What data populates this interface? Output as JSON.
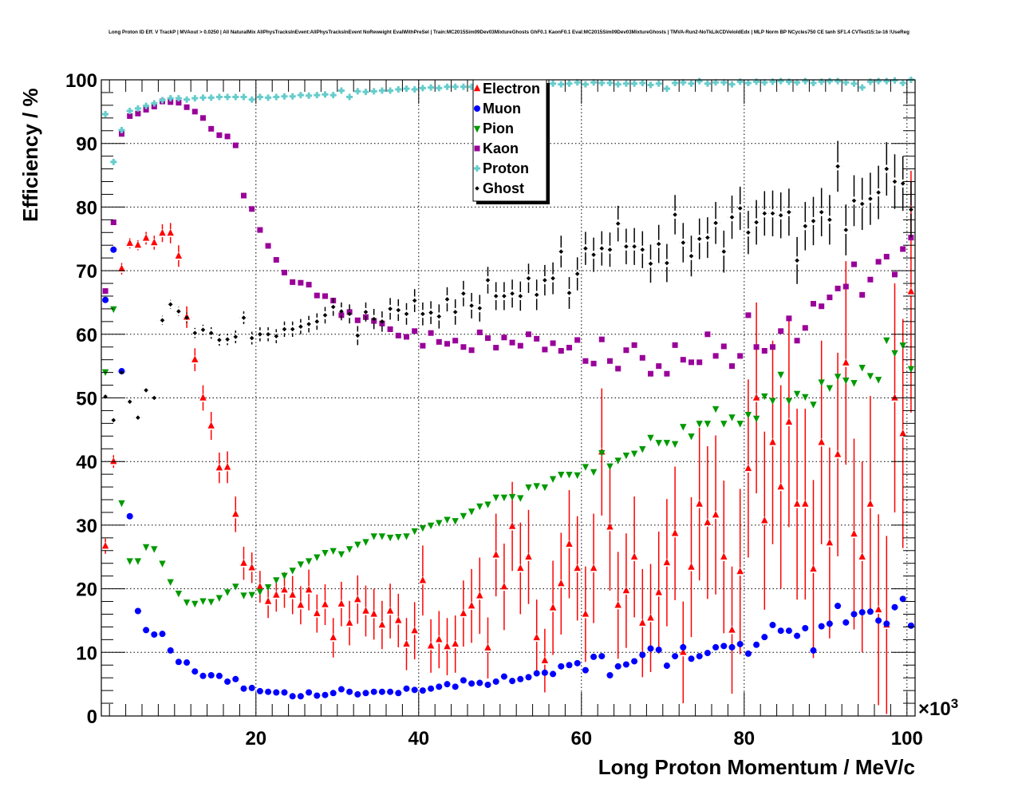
{
  "chart_data": {
    "type": "scatter",
    "title": "Long Proton ID Eff. V TrackP | MVAout > 0.0250 | All NaturalMix AllPhysTracksInEvent:AllPhysTracksInEvent NoReweight EvalWithPreSel | Train:MC2015Sim09Dev03MixtureGhosts GhF0.1 KaonF0.1 Eval:MC2015Sim09Dev03MixtureGhosts | TMVA-Run2-NoTkLikCDVeloIdEdx | MLP Norm BP NCycles750 CE tanh SF1.4 CVTest15:1e-16 !UseReg",
    "xlabel": "Long Proton Momentum / MeV/c",
    "ylabel": "Efficiency / %",
    "x_multiplier": "×10",
    "x_multiplier_exp": "3",
    "xlim": [
      1,
      101
    ],
    "ylim": [
      0,
      100
    ],
    "bin_width": 1,
    "x_first_bin_center": 1.5,
    "xticks": [
      "20",
      "40",
      "60",
      "80",
      "100"
    ],
    "yticks": [
      "0",
      "10",
      "20",
      "30",
      "40",
      "50",
      "60",
      "70",
      "80",
      "90",
      "100"
    ],
    "grid": true,
    "legend_position": "top-center",
    "series": [
      {
        "name": "Electron",
        "color": "#ff0000",
        "marker": "triangle-up",
        "values": [
          26.7,
          40,
          70.3,
          74.3,
          74,
          75.1,
          74.4,
          75.9,
          75.9,
          72.3,
          62.7,
          56,
          50,
          45.6,
          39,
          39.1,
          31.7,
          24,
          23.3,
          20.3,
          18,
          19,
          19.8,
          19,
          17.4,
          19.8,
          16.1,
          17.5,
          12.3,
          17.6,
          14.6,
          18.3,
          16.5,
          16,
          14.3,
          16.5,
          15,
          11.3,
          13.4,
          21.3,
          11,
          12,
          10.9,
          11.3,
          16.1,
          17.3,
          18.9,
          10.7,
          25.3,
          20.3,
          29.8,
          23.2,
          25,
          12.3,
          8.7,
          17,
          20.8,
          27,
          23.2,
          16,
          23.2,
          41.5,
          29.7,
          17.4,
          19.7,
          25,
          14.6,
          15.4,
          19.4,
          24.1,
          28.7,
          10,
          23.4,
          33.3,
          30.4,
          31.6,
          25,
          13.5,
          22.7,
          38.9,
          50,
          30.7,
          43,
          36,
          46.2,
          33.3,
          33.3,
          23.1,
          43,
          27.2,
          41.1,
          55.5,
          28.6,
          25,
          33.3,
          16.7,
          14.3,
          50,
          44.4,
          66.7
        ],
        "errors": [
          1.2,
          1,
          0.9,
          0.8,
          0.8,
          1,
          1.1,
          1.4,
          1.6,
          1.7,
          1.7,
          1.8,
          2,
          2.2,
          2.4,
          2.5,
          2.8,
          2.6,
          2.4,
          2.5,
          2.6,
          2.6,
          2.8,
          3,
          3,
          3.2,
          3,
          3.2,
          3.1,
          3.5,
          3.5,
          3.8,
          4,
          4,
          3.8,
          4.3,
          4.2,
          4.1,
          4.5,
          5.5,
          4.2,
          4.5,
          4.5,
          4.5,
          5.2,
          5.8,
          6,
          4.8,
          6.5,
          6.8,
          7,
          7.2,
          7.4,
          6,
          5,
          7.4,
          8,
          8.5,
          8.2,
          7.5,
          8.6,
          10,
          10,
          8.4,
          9,
          9.5,
          8.5,
          8.5,
          9.6,
          10,
          10.5,
          8,
          11,
          12,
          12,
          12.5,
          12,
          10,
          13,
          14,
          15,
          14,
          16,
          16,
          16.5,
          15,
          15,
          14,
          16,
          15,
          16,
          16,
          15,
          15,
          17,
          15,
          14,
          18,
          18,
          19
        ]
      },
      {
        "name": "Muon",
        "color": "#0000ff",
        "marker": "circle",
        "values": [
          65.4,
          73.3,
          54.2,
          31.4,
          16.5,
          13.5,
          12.8,
          12.9,
          10.3,
          8.5,
          8.4,
          7,
          6.3,
          6.4,
          6.3,
          5.4,
          5.8,
          4.3,
          4.4,
          3.9,
          3.8,
          3.7,
          3.7,
          3.1,
          3.1,
          3.7,
          3.2,
          3.3,
          3.6,
          4.2,
          3.8,
          3.4,
          3.6,
          3.8,
          3.8,
          3.8,
          3.6,
          4.3,
          4.1,
          4,
          4.3,
          4.6,
          5,
          4.6,
          5.6,
          5.1,
          5.2,
          4.9,
          5.4,
          6.2,
          5.5,
          5.8,
          6.1,
          6.7,
          6.8,
          6.6,
          7.8,
          8,
          8.3,
          7.2,
          9.3,
          9.4,
          6.4,
          7.8,
          8.1,
          8.6,
          9.6,
          10.6,
          10.4,
          7.9,
          9.4,
          10.8,
          9,
          9.4,
          9.9,
          10.8,
          11,
          10.8,
          11.3,
          9.8,
          11.2,
          12.4,
          14.3,
          13.4,
          13.4,
          12.6,
          13.8,
          10.3,
          14.1,
          14.5,
          17.3,
          14.7,
          16,
          16.3,
          16.4,
          15,
          14.5,
          17.1,
          18.4,
          14.2
        ]
      },
      {
        "name": "Pion",
        "color": "#009900",
        "marker": "triangle-down",
        "values": [
          54.1,
          64,
          33.5,
          24.4,
          24.4,
          26.6,
          26.3,
          24,
          21.1,
          19.3,
          17.9,
          17.7,
          18.1,
          18,
          18.6,
          19.5,
          20.4,
          19,
          19.1,
          19.6,
          20.3,
          21.4,
          22.1,
          22.9,
          23.9,
          24.4,
          25,
          25.7,
          26,
          25.5,
          26.3,
          27,
          27.4,
          28.3,
          28.3,
          28.1,
          28.2,
          28.3,
          29.1,
          29.6,
          30,
          30.4,
          30.9,
          30.7,
          31.5,
          32.2,
          33,
          33.3,
          34.4,
          34.4,
          34.5,
          34.3,
          36,
          36.2,
          36,
          37.3,
          38,
          38,
          37.9,
          39.2,
          38.4,
          41.4,
          39.3,
          40.2,
          41,
          41.3,
          42,
          43.8,
          43,
          43,
          42.8,
          45.5,
          44,
          46,
          46,
          48.3,
          46,
          47,
          46,
          47.4,
          46.8,
          50.3,
          49.6,
          53.7,
          49.6,
          50.7,
          50.2,
          49,
          52.5,
          51.6,
          53.4,
          52.8,
          52.4,
          54.8,
          53.5,
          52.9,
          59.1,
          57.1,
          58.3,
          54.6
        ]
      },
      {
        "name": "Kaon",
        "color": "#990099",
        "marker": "square",
        "values": [
          66.8,
          77.6,
          91.5,
          94.3,
          94.7,
          95.3,
          95.8,
          96.6,
          96.5,
          96.4,
          95.7,
          95,
          94,
          92.3,
          91.3,
          91.1,
          89.7,
          81.8,
          79.7,
          76.4,
          73.9,
          71.7,
          69.7,
          68.2,
          68.1,
          67.8,
          66.1,
          66,
          65.3,
          63,
          63.5,
          62.2,
          62.7,
          62.1,
          61.7,
          60.8,
          59.8,
          59.6,
          60.5,
          58.2,
          60.2,
          58.8,
          58.5,
          59,
          58,
          57.5,
          60.3,
          59.4,
          57.9,
          59.5,
          58.7,
          58.2,
          60,
          59.3,
          57.6,
          58.6,
          57.4,
          57.9,
          59.1,
          55.8,
          55.4,
          59.2,
          55.8,
          54.6,
          57.5,
          58.3,
          56.3,
          53.8,
          55,
          53.8,
          58.3,
          56,
          55.6,
          55.6,
          60,
          56.6,
          58.1,
          55,
          56.6,
          63,
          58,
          57.4,
          58,
          60.5,
          62.5,
          59,
          61,
          64.8,
          64.4,
          65.8,
          67.2,
          67.5,
          71,
          66.2,
          68.6,
          71.4,
          72.2,
          69.4,
          73.4,
          75.2
        ]
      },
      {
        "name": "Proton",
        "color": "#66cccc",
        "marker": "cross",
        "values": [
          94.6,
          87.1,
          92.1,
          95.1,
          95.5,
          95.9,
          96.3,
          96.8,
          97.1,
          97.1,
          96.9,
          97.1,
          97.2,
          97.2,
          97.3,
          97.3,
          97.3,
          97.3,
          96.9,
          97.3,
          97.2,
          97.3,
          97.4,
          97.4,
          97.6,
          97.5,
          97.6,
          97.7,
          97.6,
          98.3,
          97.3,
          98.2,
          98.1,
          98.2,
          98.3,
          98.3,
          98.5,
          98.6,
          98.5,
          98.7,
          98.8,
          98.7,
          98.9,
          98.9,
          98.9,
          98.9,
          99,
          99.1,
          99,
          99.3,
          99.1,
          99.2,
          99.2,
          99.3,
          99.1,
          99.4,
          99.3,
          99.4,
          99.6,
          99.3,
          99.6,
          99.5,
          99.5,
          99.3,
          99.4,
          99.4,
          99.5,
          99.2,
          99.4,
          98.6,
          99.5,
          99.6,
          99.4,
          99.8,
          99.4,
          99.6,
          99.6,
          99.3,
          99.7,
          99.5,
          99.7,
          99.6,
          99.7,
          99.8,
          99.7,
          99.6,
          99.8,
          99.5,
          99.7,
          99.8,
          99.8,
          99.6,
          99.4,
          98.8,
          99.7,
          99.8,
          99.8,
          99.9,
          99.5,
          100
        ]
      },
      {
        "name": "Ghost",
        "color": "#000000",
        "marker": "diamond",
        "values": [
          50.2,
          46.5,
          54,
          49.4,
          46.9,
          51.2,
          50,
          62.2,
          64.7,
          63.6,
          62.6,
          60.2,
          60.7,
          60.2,
          59.1,
          59.2,
          59.6,
          62.6,
          59.4,
          60,
          60,
          59.7,
          60.8,
          60.8,
          61.2,
          61.6,
          62,
          63,
          64.3,
          63.6,
          63.2,
          59.8,
          63.5,
          62.4,
          62,
          64,
          63.8,
          63.2,
          65.3,
          63.2,
          63.4,
          62.8,
          65.5,
          63.5,
          66.4,
          64.5,
          64.1,
          68.5,
          66,
          66,
          66.4,
          66,
          68.8,
          66.2,
          68.5,
          68.8,
          73,
          66.5,
          69.5,
          73.5,
          72.5,
          73.5,
          73.3,
          77.4,
          73.8,
          73.8,
          73.3,
          71.1,
          74.2,
          71.2,
          78.8,
          74.4,
          72.3,
          75,
          75.2,
          77.5,
          73,
          78.4,
          79.8,
          76,
          77.6,
          79,
          79,
          78.7,
          79.2,
          71.6,
          77,
          77.8,
          79.2,
          78,
          86.4,
          76.4,
          81,
          80.5,
          81.3,
          82.3,
          86,
          84,
          83.7,
          79.6
        ],
        "errors": [
          0.6,
          0.6,
          0.6,
          0.6,
          0.6,
          0.6,
          0.6,
          0.7,
          0.7,
          0.7,
          0.8,
          0.8,
          0.8,
          0.9,
          0.9,
          0.9,
          1,
          1,
          1,
          1.1,
          1.1,
          1.1,
          1.2,
          1.2,
          1.2,
          1.3,
          1.3,
          1.3,
          1.4,
          1.4,
          1.5,
          1.5,
          1.5,
          1.6,
          1.6,
          1.7,
          1.7,
          1.7,
          1.8,
          1.8,
          1.8,
          1.9,
          1.9,
          2,
          2,
          2,
          2.1,
          2.1,
          2.2,
          2.2,
          2.2,
          2.3,
          2.3,
          2.4,
          2.4,
          2.5,
          2.5,
          2.5,
          2.6,
          2.6,
          2.7,
          2.7,
          2.7,
          2.8,
          2.8,
          2.9,
          2.9,
          3,
          3,
          3,
          3.1,
          3.1,
          3.2,
          3.2,
          3.2,
          3.3,
          3.3,
          3.4,
          3.4,
          3.4,
          3.5,
          3.5,
          3.6,
          3.6,
          3.7,
          3.7,
          3.8,
          3.8,
          3.8,
          3.9,
          4,
          4,
          4,
          4.1,
          4.1,
          4.2,
          4.2,
          4.3,
          4.3,
          4.4
        ]
      }
    ]
  }
}
